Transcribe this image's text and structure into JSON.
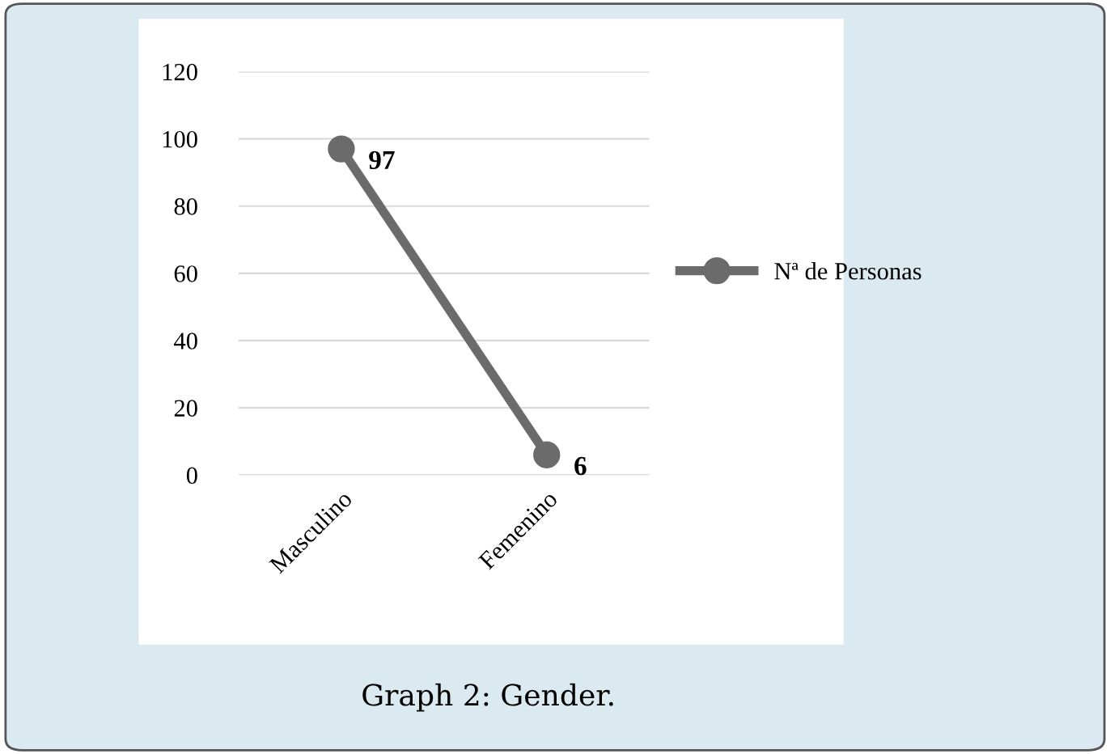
{
  "chart_data": {
    "type": "line",
    "categories": [
      "Masculino",
      "Femenino"
    ],
    "series": [
      {
        "name": "Nª de Personas",
        "color": "#6b6b6b",
        "values": [
          97,
          6
        ]
      }
    ],
    "ylim": [
      0,
      120
    ],
    "yticks": [
      0,
      20,
      40,
      60,
      80,
      100,
      120
    ],
    "grid": "y",
    "legend": "right",
    "marker": "circle",
    "line_style": "solid",
    "data_labels": true,
    "annotations": [
      "Graph 2: Gender."
    ]
  }
}
